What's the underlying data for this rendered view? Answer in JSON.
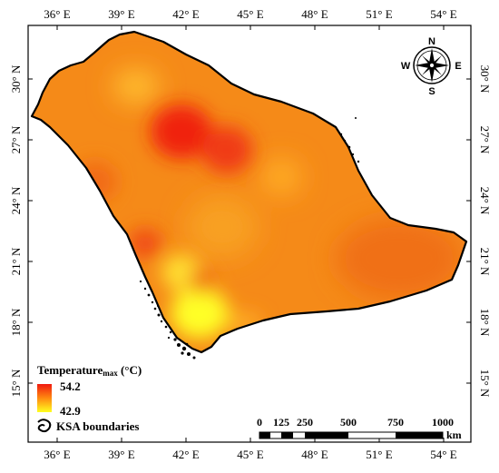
{
  "map": {
    "top_axis_labels": [
      "36° E",
      "39° E",
      "42° E",
      "45° E",
      "48° E",
      "51° E",
      "54° E"
    ],
    "bottom_axis_labels": [
      "36° E",
      "39° E",
      "42° E",
      "45° E",
      "48° E",
      "51° E",
      "54° E"
    ],
    "left_axis_labels": [
      "30° N",
      "27° N",
      "24° N",
      "21° N",
      "18° N",
      "15° N"
    ],
    "right_axis_labels": [
      "30° N",
      "27° N",
      "24° N",
      "21° N",
      "18° N",
      "15° N"
    ]
  },
  "compass": {
    "n": "N",
    "s": "S",
    "e": "E",
    "w": "W"
  },
  "legend": {
    "title_main": "Temperature",
    "title_sub": "max",
    "title_unit": " (°C)",
    "max_value": "54.2",
    "min_value": "42.9",
    "boundary_label": "KSA boundaries",
    "color_high": "#f01a10",
    "color_low": "#ffff20"
  },
  "scalebar": {
    "labels": [
      "0",
      "125",
      "250",
      "500",
      "750",
      "1000"
    ],
    "unit": "km"
  }
}
